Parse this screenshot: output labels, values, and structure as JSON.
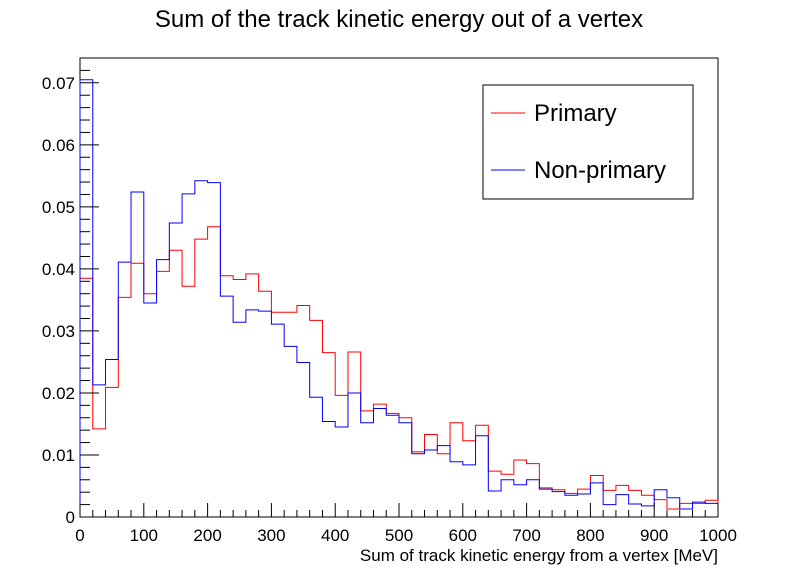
{
  "chart_data": {
    "type": "step",
    "title": "Sum of the track kinetic energy out of a vertex",
    "xlabel": "Sum of track kinetic energy from a vertex [MeV]",
    "ylabel": "",
    "xlim": [
      0,
      1000
    ],
    "ylim": [
      0,
      0.074
    ],
    "bin_width": 20,
    "x_ticks": [
      0,
      100,
      200,
      300,
      400,
      500,
      600,
      700,
      800,
      900,
      1000
    ],
    "x_tick_labels": [
      "0",
      "100",
      "200",
      "300",
      "400",
      "500",
      "600",
      "700",
      "800",
      "900",
      "1000"
    ],
    "y_ticks": [
      0,
      0.01,
      0.02,
      0.03,
      0.04,
      0.05,
      0.06,
      0.07
    ],
    "y_tick_labels": [
      "0",
      "0.01",
      "0.02",
      "0.03",
      "0.04",
      "0.05",
      "0.06",
      "0.07"
    ],
    "grid": false,
    "legend_position": "top-right",
    "series": [
      {
        "name": "Primary",
        "color": "#ff0000",
        "values": [
          0.0385,
          0.0142,
          0.0209,
          0.0354,
          0.0409,
          0.036,
          0.0396,
          0.043,
          0.0372,
          0.0448,
          0.0468,
          0.0389,
          0.0383,
          0.0392,
          0.0364,
          0.033,
          0.033,
          0.0341,
          0.0317,
          0.0265,
          0.0196,
          0.0266,
          0.0171,
          0.0182,
          0.0167,
          0.016,
          0.0105,
          0.0133,
          0.0102,
          0.0152,
          0.0123,
          0.0148,
          0.0074,
          0.0069,
          0.0092,
          0.0086,
          0.0047,
          0.0044,
          0.0038,
          0.0045,
          0.0067,
          0.0043,
          0.0051,
          0.0043,
          0.0035,
          0.0028,
          0.0013,
          0.0022,
          0.0022,
          0.0027
        ]
      },
      {
        "name": "Non-primary",
        "color": "#0000ff",
        "values": [
          0.0705,
          0.0213,
          0.0254,
          0.0411,
          0.0524,
          0.0345,
          0.0415,
          0.0474,
          0.0521,
          0.0542,
          0.0539,
          0.0356,
          0.0314,
          0.0334,
          0.0332,
          0.0311,
          0.0275,
          0.0249,
          0.0193,
          0.0154,
          0.0145,
          0.02,
          0.0152,
          0.0175,
          0.0164,
          0.0152,
          0.0102,
          0.0108,
          0.0115,
          0.0089,
          0.0084,
          0.0131,
          0.0042,
          0.006,
          0.0052,
          0.006,
          0.0045,
          0.0041,
          0.0035,
          0.0037,
          0.0055,
          0.002,
          0.0036,
          0.0021,
          0.0018,
          0.0044,
          0.0031,
          0.0013,
          0.0024,
          0.0022
        ]
      }
    ]
  }
}
